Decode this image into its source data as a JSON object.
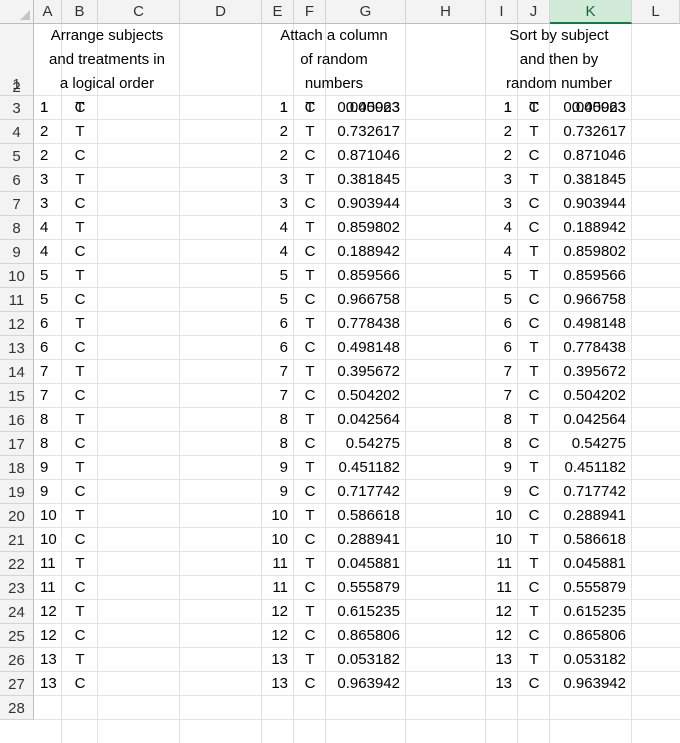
{
  "columns": [
    "A",
    "B",
    "C",
    "D",
    "E",
    "F",
    "G",
    "H",
    "I",
    "J",
    "K",
    "L"
  ],
  "selected_column": "K",
  "row_numbers": [
    "1",
    "2",
    "3",
    "4",
    "5",
    "6",
    "7",
    "8",
    "9",
    "10",
    "11",
    "12",
    "13",
    "14",
    "15",
    "16",
    "17",
    "18",
    "19",
    "20",
    "21",
    "22",
    "23",
    "24",
    "25",
    "26",
    "27",
    "28"
  ],
  "headers": {
    "block1": [
      "Arrange subjects",
      "and treatments in",
      "a logical order"
    ],
    "block2": [
      "Attach a column",
      "of random",
      "numbers"
    ],
    "block3": [
      "Sort by subject",
      "and then by",
      "random number"
    ]
  },
  "block1": [
    [
      "1",
      "T"
    ],
    [
      "1",
      "C"
    ],
    [
      "2",
      "T"
    ],
    [
      "2",
      "C"
    ],
    [
      "3",
      "T"
    ],
    [
      "3",
      "C"
    ],
    [
      "4",
      "T"
    ],
    [
      "4",
      "C"
    ],
    [
      "5",
      "T"
    ],
    [
      "5",
      "C"
    ],
    [
      "6",
      "T"
    ],
    [
      "6",
      "C"
    ],
    [
      "7",
      "T"
    ],
    [
      "7",
      "C"
    ],
    [
      "8",
      "T"
    ],
    [
      "8",
      "C"
    ],
    [
      "9",
      "T"
    ],
    [
      "9",
      "C"
    ],
    [
      "10",
      "T"
    ],
    [
      "10",
      "C"
    ],
    [
      "11",
      "T"
    ],
    [
      "11",
      "C"
    ],
    [
      "12",
      "T"
    ],
    [
      "12",
      "C"
    ],
    [
      "13",
      "T"
    ],
    [
      "13",
      "C"
    ]
  ],
  "block2": [
    [
      "1",
      "T",
      "0.040063"
    ],
    [
      "1",
      "C",
      "0.05923"
    ],
    [
      "2",
      "T",
      "0.732617"
    ],
    [
      "2",
      "C",
      "0.871046"
    ],
    [
      "3",
      "T",
      "0.381845"
    ],
    [
      "3",
      "C",
      "0.903944"
    ],
    [
      "4",
      "T",
      "0.859802"
    ],
    [
      "4",
      "C",
      "0.188942"
    ],
    [
      "5",
      "T",
      "0.859566"
    ],
    [
      "5",
      "C",
      "0.966758"
    ],
    [
      "6",
      "T",
      "0.778438"
    ],
    [
      "6",
      "C",
      "0.498148"
    ],
    [
      "7",
      "T",
      "0.395672"
    ],
    [
      "7",
      "C",
      "0.504202"
    ],
    [
      "8",
      "T",
      "0.042564"
    ],
    [
      "8",
      "C",
      "0.54275"
    ],
    [
      "9",
      "T",
      "0.451182"
    ],
    [
      "9",
      "C",
      "0.717742"
    ],
    [
      "10",
      "T",
      "0.586618"
    ],
    [
      "10",
      "C",
      "0.288941"
    ],
    [
      "11",
      "T",
      "0.045881"
    ],
    [
      "11",
      "C",
      "0.555879"
    ],
    [
      "12",
      "T",
      "0.615235"
    ],
    [
      "12",
      "C",
      "0.865806"
    ],
    [
      "13",
      "T",
      "0.053182"
    ],
    [
      "13",
      "C",
      "0.963942"
    ]
  ],
  "block3": [
    [
      "1",
      "T",
      "0.040063"
    ],
    [
      "1",
      "C",
      "0.05923"
    ],
    [
      "2",
      "T",
      "0.732617"
    ],
    [
      "2",
      "C",
      "0.871046"
    ],
    [
      "3",
      "T",
      "0.381845"
    ],
    [
      "3",
      "C",
      "0.903944"
    ],
    [
      "4",
      "C",
      "0.188942"
    ],
    [
      "4",
      "T",
      "0.859802"
    ],
    [
      "5",
      "T",
      "0.859566"
    ],
    [
      "5",
      "C",
      "0.966758"
    ],
    [
      "6",
      "C",
      "0.498148"
    ],
    [
      "6",
      "T",
      "0.778438"
    ],
    [
      "7",
      "T",
      "0.395672"
    ],
    [
      "7",
      "C",
      "0.504202"
    ],
    [
      "8",
      "T",
      "0.042564"
    ],
    [
      "8",
      "C",
      "0.54275"
    ],
    [
      "9",
      "T",
      "0.451182"
    ],
    [
      "9",
      "C",
      "0.717742"
    ],
    [
      "10",
      "C",
      "0.288941"
    ],
    [
      "10",
      "T",
      "0.586618"
    ],
    [
      "11",
      "T",
      "0.045881"
    ],
    [
      "11",
      "C",
      "0.555879"
    ],
    [
      "12",
      "T",
      "0.615235"
    ],
    [
      "12",
      "C",
      "0.865806"
    ],
    [
      "13",
      "T",
      "0.053182"
    ],
    [
      "13",
      "C",
      "0.963942"
    ]
  ]
}
